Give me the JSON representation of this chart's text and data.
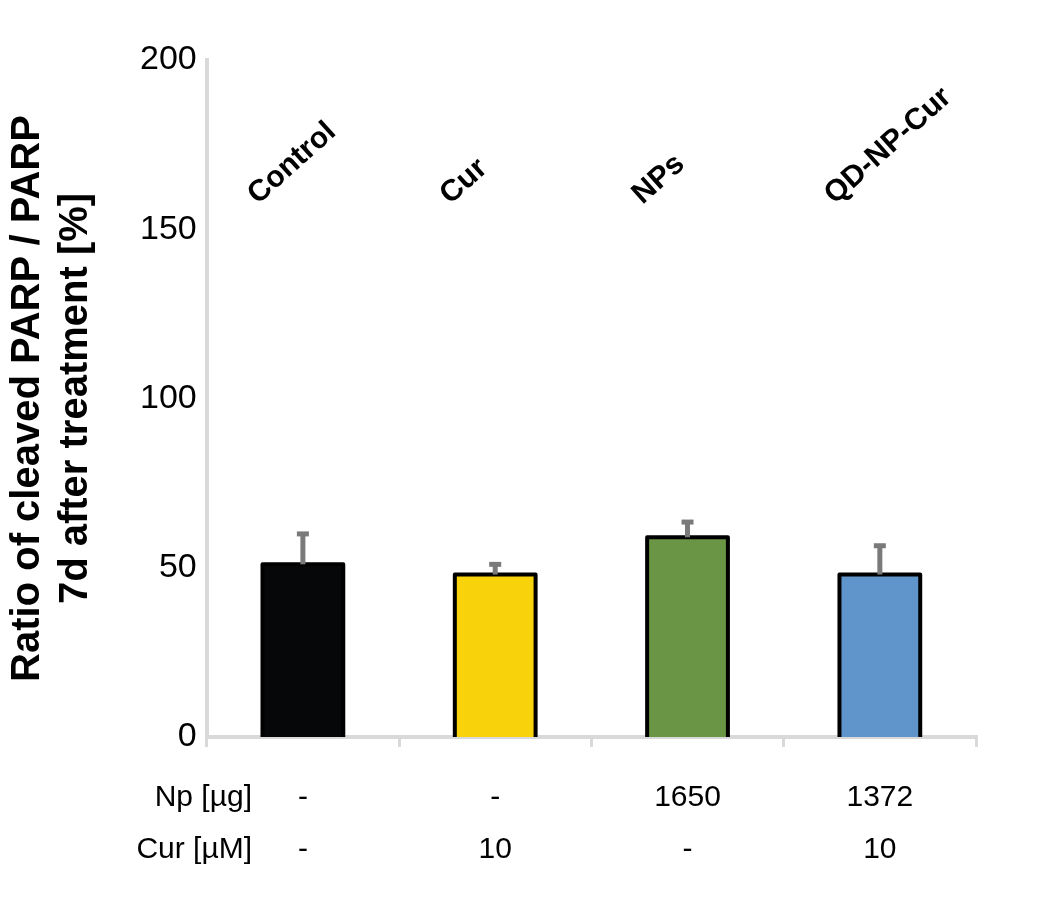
{
  "chart_data": {
    "type": "bar",
    "ylabel": "Ratio of cleaved PARP / PARP\n7d after treatment [%]",
    "categories": [
      "Control",
      "Cur",
      "NPs",
      "QD-NP-Cur"
    ],
    "values": [
      51,
      48,
      59,
      48
    ],
    "colors": [
      "#060708",
      "#f8d30c",
      "#6a9544",
      "#6095cb"
    ],
    "errors": [
      [
        51,
        60
      ],
      [
        48,
        51
      ],
      [
        59,
        63.5
      ],
      [
        48,
        56.5
      ]
    ],
    "ylim": [
      0,
      200
    ],
    "yticks": [
      0,
      50,
      100,
      150,
      200
    ],
    "grid": false,
    "legend": false,
    "annotations": [
      "Np [µg]",
      "-",
      "-",
      "1650",
      "1372",
      "Cur [µM]",
      "-",
      "10",
      "-",
      "10"
    ]
  }
}
